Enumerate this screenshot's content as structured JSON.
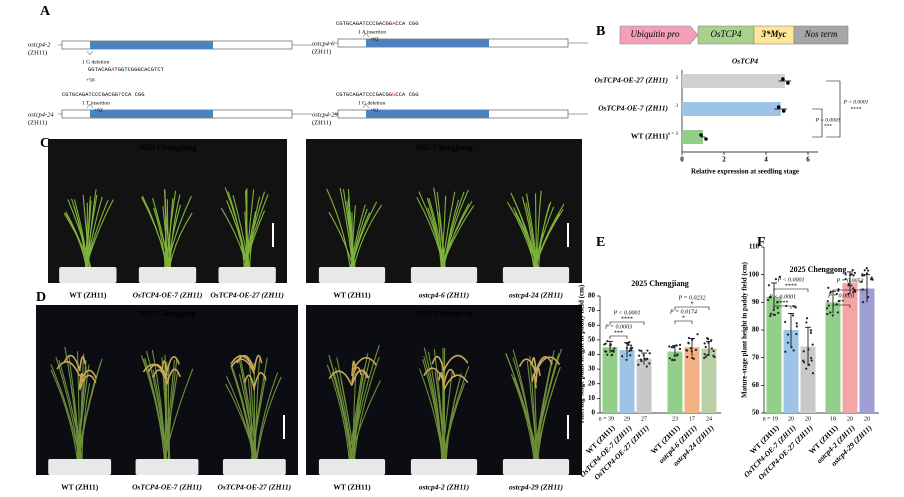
{
  "panel_labels": [
    "A",
    "B",
    "C",
    "D",
    "E",
    "F"
  ],
  "panel_a": {
    "genes": [
      {
        "label": "ostcp4-2",
        "background": "(ZH11)",
        "mutation": "1 G deletion",
        "sequence": [
          "GGTACAG",
          "A",
          "TGGTCGGGCACGTCT"
        ],
        "position": "+56"
      },
      {
        "label": "ostcp4-6",
        "background": "(ZH11)",
        "mutation": "1 A insertion",
        "sequence": [
          "CGTGCAGATCCCGACGG",
          "A",
          "CCA CGG"
        ],
        "position": "+62"
      },
      {
        "label": "ostcp4-24",
        "background": "(ZH11)",
        "mutation": "1 T insertion",
        "sequence": [
          "CGTGCAGATCCCGACGG",
          "T",
          "CCA CGG"
        ],
        "position": "+62"
      },
      {
        "label": "ostcp4-29",
        "background": "(ZH11)",
        "mutation": "1 G deletion",
        "sequence": [
          "CGTGCAGATCCCGACGG",
          "G",
          "CCA CGG"
        ],
        "position": "+61"
      }
    ]
  },
  "panel_b": {
    "construct": [
      "Ubiquitin pro",
      "OsTCP4",
      "3*Myc",
      "Nos term"
    ]
  },
  "panel_c": {
    "photos": [
      {
        "title": "2025 Chengjiang",
        "labels": [
          "WT (ZH11)",
          "OsTCP4-OE-7 (ZH11)",
          "OsTCP4-OE-27 (ZH11)"
        ]
      },
      {
        "title": "2025 Chengjiang",
        "labels": [
          "WT (ZH11)",
          "ostcp4-6 (ZH11)",
          "ostcp4-24 (ZH11)"
        ]
      }
    ]
  },
  "panel_d": {
    "photos": [
      {
        "title": "2025 Chenggong",
        "labels": [
          "WT (ZH11)",
          "OsTCP4-OE-7 (ZH11)",
          "OsTCP4-OE-27 (ZH11)"
        ]
      },
      {
        "title": "2025 Chenggong",
        "labels": [
          "WT (ZH11)",
          "ostcp4-2 (ZH11)",
          "ostcp4-29 (ZH11)"
        ]
      }
    ]
  },
  "chart_data": [
    {
      "type": "hbar",
      "title": "OsTCP4",
      "xlabel": "Relative expression at seedling stage",
      "categories": [
        "OsTCP4-OE-27 (ZH11)",
        "OsTCP4-OE-7 (ZH11)",
        "WT (ZH11)"
      ],
      "values": [
        4.9,
        4.7,
        1.0
      ],
      "errors": [
        0.3,
        0.3,
        0.1
      ],
      "colors": [
        "#d0d0d0",
        "#9dc3e6",
        "#92d08a"
      ],
      "xlim": [
        0,
        6
      ],
      "xticks": [
        0,
        2,
        4,
        6
      ],
      "n_labels": [
        "3",
        "3",
        "n = 3"
      ],
      "annotations": [
        "P < 0.0001",
        "****",
        "P = 0.0003",
        "***"
      ]
    },
    {
      "type": "bar",
      "title": "2025 Chengjiang",
      "ylabel": "Tillering-stage plant height in paddy field (cm)",
      "categories": [
        "WT (ZH11)",
        "OsTCP4-OE-7 (ZH11)",
        "OsTCP4-OE-27 (ZH11)",
        "WT (ZH11)",
        "ostcp4-6 (ZH11)",
        "ostcp4-24 (ZH11)"
      ],
      "values": [
        45,
        43,
        37,
        42,
        45,
        44
      ],
      "errors": [
        4,
        5,
        4,
        4,
        6,
        5
      ],
      "colors": [
        "#92d08a",
        "#9dc3e6",
        "#c8c8c8",
        "#92d08a",
        "#f4b183",
        "#b8cfa8"
      ],
      "ylim": [
        0,
        80
      ],
      "yticks": [
        0,
        10,
        20,
        30,
        40,
        50,
        60,
        70,
        80
      ],
      "n_labels": [
        "n = 39",
        "29",
        "27",
        "23",
        "17",
        "24"
      ],
      "annotations": [
        "P < 0.0001",
        "****",
        "P = 0.0003",
        "***",
        "P = 0.0232",
        "*",
        "P = 0.0174",
        "*"
      ]
    },
    {
      "type": "bar",
      "title": "2025 Chenggong",
      "ylabel": "Mature-stage plant height in paddy field (cm)",
      "categories": [
        "WT (ZH11)",
        "OsTCP4-OE-7 (ZH11)",
        "OsTCP4-OE-27 (ZH11)",
        "WT (ZH11)",
        "ostcp4-2 (ZH11)",
        "ostcp4-29 (ZH11)"
      ],
      "values": [
        92,
        80,
        74,
        90,
        97,
        95
      ],
      "errors": [
        5,
        6,
        7,
        4,
        4,
        5
      ],
      "colors": [
        "#92d08a",
        "#9dc3e6",
        "#c8c8c8",
        "#92d08a",
        "#f4a6a6",
        "#9e9ed4"
      ],
      "ylim": [
        50,
        110
      ],
      "yticks": [
        50,
        60,
        70,
        80,
        90,
        100,
        110
      ],
      "n_labels": [
        "n = 19",
        "20",
        "20",
        "18",
        "20",
        "20"
      ],
      "annotations": [
        "P < 0.0001",
        "****",
        "P < 0.0001",
        "****",
        "P = 0.0053",
        "**",
        "P = 0.0031",
        "**"
      ]
    }
  ]
}
